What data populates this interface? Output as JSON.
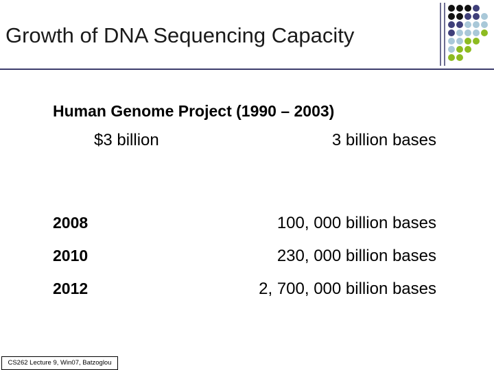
{
  "title": "Growth of DNA Sequencing Capacity",
  "project": {
    "heading": "Human Genome Project (1990 – 2003)",
    "cost": "$3 billion",
    "bases": "3 billion bases"
  },
  "rows": [
    {
      "year": "2008",
      "bases": "100, 000 billion bases"
    },
    {
      "year": "2010",
      "bases": "230, 000 billion bases"
    },
    {
      "year": "2012",
      "bases": "2, 700, 000 billion bases"
    }
  ],
  "footer": "CS262 Lecture 9, Win07, Batzoglou"
}
